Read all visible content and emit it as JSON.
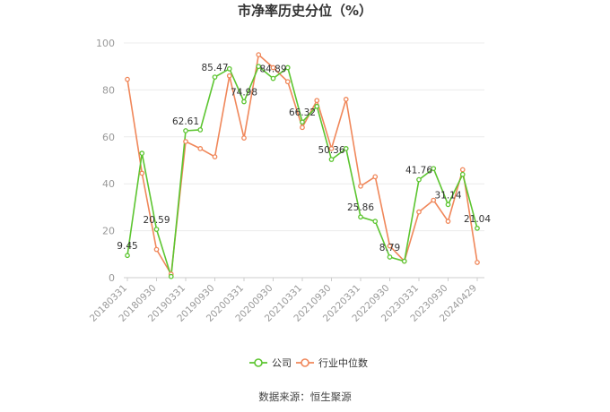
{
  "chart_data": {
    "type": "line",
    "title": "市净率历史分位（%）",
    "ylim": [
      0,
      100
    ],
    "y_ticks": [
      0,
      20,
      40,
      60,
      80,
      100
    ],
    "grid": true,
    "legend_placement": "bottom",
    "x_tick_labels": [
      "20180331",
      "20180930",
      "20190331",
      "20190930",
      "20200331",
      "20200930",
      "20210331",
      "20210930",
      "20220331",
      "20220930",
      "20230331",
      "20230930",
      "20240429"
    ],
    "series": [
      {
        "name": "公司",
        "color": "#5cc530",
        "values": [
          9.45,
          53.0,
          20.59,
          0.5,
          62.61,
          63.0,
          85.47,
          89.0,
          74.98,
          90.0,
          84.89,
          89.5,
          66.32,
          73.0,
          50.36,
          55.0,
          25.86,
          24.0,
          8.79,
          7.0,
          41.76,
          46.5,
          31.14,
          44.0,
          21.04
        ]
      },
      {
        "name": "行业中位数",
        "color": "#f0875a",
        "values": [
          84.5,
          44.5,
          12.0,
          1.5,
          58.0,
          55.0,
          51.5,
          86.0,
          59.5,
          95.0,
          89.5,
          83.5,
          64.0,
          75.5,
          55.0,
          76.0,
          39.0,
          43.0,
          13.5,
          7.0,
          28.0,
          33.0,
          24.0,
          46.0,
          6.5
        ]
      }
    ],
    "data_labels": [
      {
        "series": 0,
        "index": 0,
        "text": "9.45"
      },
      {
        "series": 0,
        "index": 2,
        "text": "20.59"
      },
      {
        "series": 0,
        "index": 4,
        "text": "62.61"
      },
      {
        "series": 0,
        "index": 6,
        "text": "85.47"
      },
      {
        "series": 0,
        "index": 8,
        "text": "74.98"
      },
      {
        "series": 0,
        "index": 10,
        "text": "84.89"
      },
      {
        "series": 0,
        "index": 12,
        "text": "66.32"
      },
      {
        "series": 0,
        "index": 14,
        "text": "50.36"
      },
      {
        "series": 0,
        "index": 16,
        "text": "25.86"
      },
      {
        "series": 0,
        "index": 18,
        "text": "8.79"
      },
      {
        "series": 0,
        "index": 20,
        "text": "41.76"
      },
      {
        "series": 0,
        "index": 22,
        "text": "31.14"
      },
      {
        "series": 0,
        "index": 24,
        "text": "21.04"
      }
    ]
  },
  "source_text": "数据来源：恒生聚源"
}
